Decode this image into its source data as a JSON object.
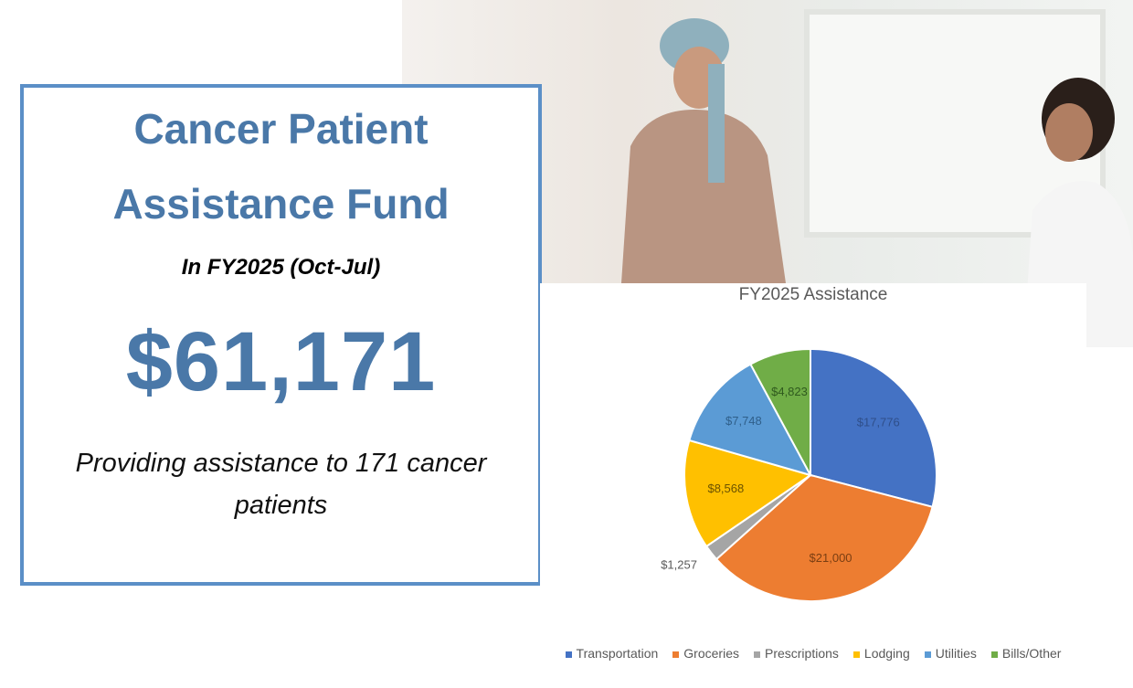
{
  "card": {
    "title_line1": "Cancer Patient",
    "title_line2": "Assistance Fund",
    "period": "In FY2025 (Oct-Jul)",
    "total": "$61,171",
    "description": "Providing assistance to 171 cancer patients"
  },
  "chart_data": {
    "type": "pie",
    "title": "FY2025 Assistance",
    "categories": [
      "Transportation",
      "Groceries",
      "Prescriptions",
      "Lodging",
      "Utilities",
      "Bills/Other"
    ],
    "values": [
      17776,
      21000,
      1257,
      8568,
      7748,
      4823
    ],
    "labels": [
      "$17,776",
      "$21,000",
      "$1,257",
      "$8,568",
      "$7,748",
      "$4,823"
    ],
    "colors": [
      "#4472c4",
      "#ed7d31",
      "#a5a5a5",
      "#ffc000",
      "#5b9bd5",
      "#70ad47"
    ],
    "legend_position": "bottom"
  }
}
